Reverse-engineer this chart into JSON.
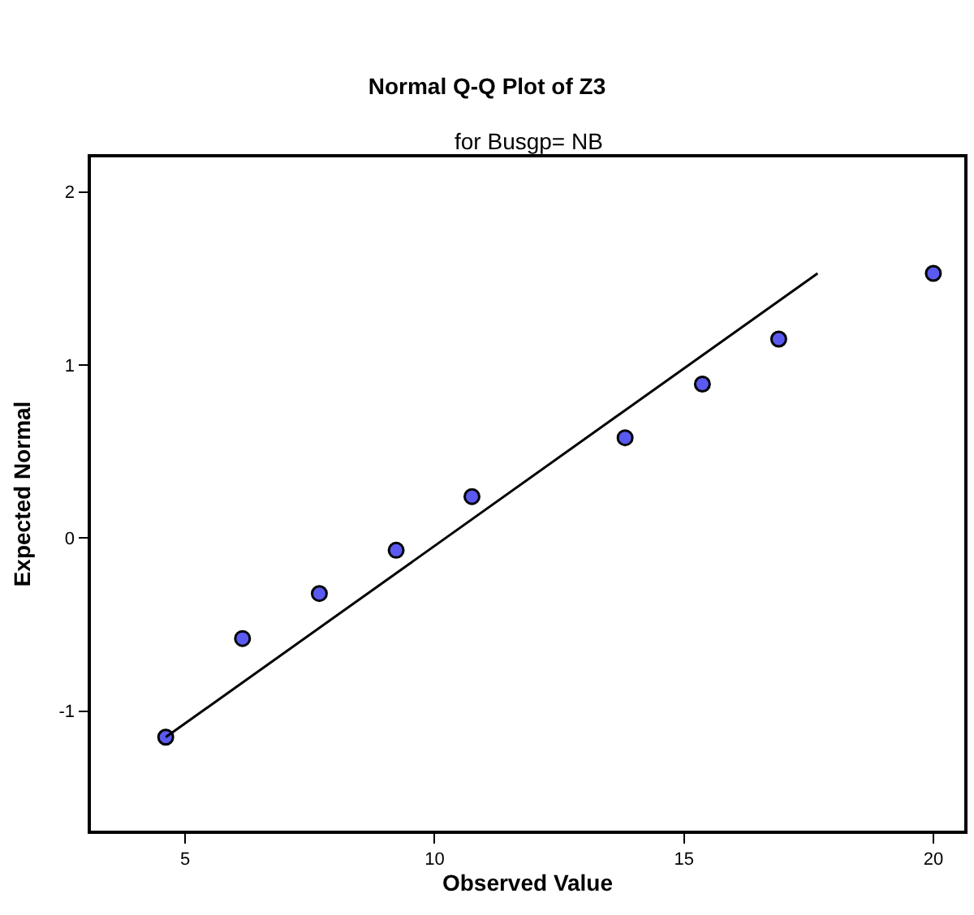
{
  "chart_data": {
    "type": "scatter",
    "title": "Normal Q-Q Plot of Z3",
    "subtitle": "for Busgp= NB",
    "xlabel": "Observed Value",
    "ylabel": "Expected Normal",
    "series": [
      {
        "color": "#5a5af0",
        "marker": "circle",
        "x": [
          4.61,
          6.15,
          7.69,
          9.23,
          10.75,
          13.82,
          15.37,
          16.9,
          20.0
        ],
        "values": [
          -1.15,
          -0.58,
          -0.32,
          -0.07,
          0.24,
          0.58,
          0.89,
          1.15,
          1.53
        ]
      },
      {
        "type": "line",
        "color": "#000000",
        "marker": "none",
        "line_style": "solid",
        "x": [
          4.61,
          17.68
        ],
        "values": [
          -1.15,
          1.53
        ]
      }
    ],
    "xlim": [
      3.11,
      20.62
    ],
    "ylim": [
      -1.69,
      2.2
    ],
    "xticks": [
      5,
      10,
      15,
      20
    ],
    "yticks": [
      {
        "value": -1,
        "label": "-1"
      },
      0,
      1,
      2
    ]
  }
}
